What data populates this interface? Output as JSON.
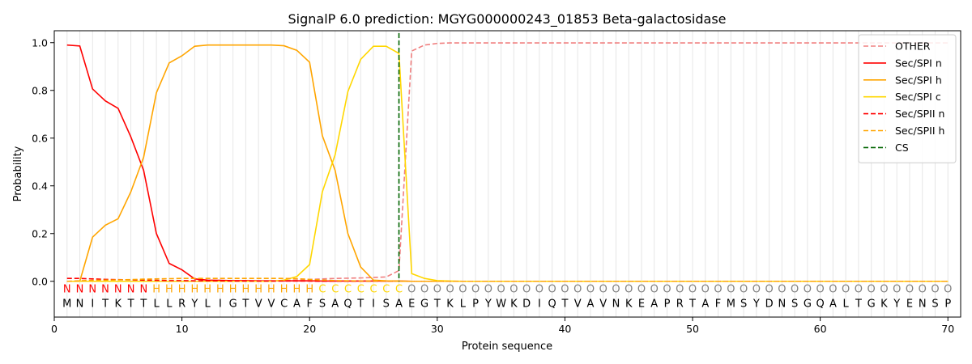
{
  "chart_data": {
    "type": "line",
    "title": "SignalP 6.0 prediction: MGYG000000243_01853 Beta-galactosidase",
    "xlabel": "Protein sequence",
    "ylabel": "Probability",
    "xlim": [
      0,
      71
    ],
    "ylim": [
      -0.15,
      1.05
    ],
    "xticks": [
      0,
      10,
      20,
      30,
      40,
      50,
      60,
      70
    ],
    "yticks": [
      0.0,
      0.2,
      0.4,
      0.6,
      0.8,
      1.0
    ],
    "ytick_labels": [
      "0.0",
      "0.2",
      "0.4",
      "0.6",
      "0.8",
      "1.0"
    ],
    "legend_position": "top-right",
    "sequence": "MNITKTTLLRYLIGTVVCAFSAQTISAEGTKLPYWKDIQTVAVNKEAPRTAFMSYDNSGQALTGKYENSP",
    "labels": "NNNNNNNHHHHHHHHHHHHHCCCCCCCOOOOOOOOOOOOOOOOOOOOOOOOOOOOOOOOOOOOOOOOOOO",
    "label_colors": {
      "N": "#ff0000",
      "H": "#ffa500",
      "C": "#ffd700",
      "O": "#808080"
    },
    "cleavage_site": 27,
    "series": [
      {
        "name": "OTHER",
        "color": "#f08080",
        "dash": "dashed",
        "values": [
          0.0,
          0.0,
          0.0,
          0.0,
          0.0,
          0.0,
          0.0,
          0.0,
          0.0,
          0.0,
          0.0,
          0.0,
          0.0,
          0.0,
          0.0,
          0.0,
          0.0,
          0.003,
          0.005,
          0.008,
          0.01,
          0.012,
          0.013,
          0.014,
          0.016,
          0.018,
          0.045,
          0.965,
          0.99,
          0.997,
          0.999,
          0.999
        ]
      },
      {
        "name": "Sec/SPI n",
        "color": "#ff0000",
        "dash": "solid",
        "values": [
          0.99,
          0.986,
          0.806,
          0.756,
          0.725,
          0.605,
          0.465,
          0.2,
          0.075,
          0.048,
          0.01,
          0.005,
          0.004,
          0.003,
          0.003,
          0.002,
          0.002,
          0.002,
          0.002,
          0.002,
          0.001,
          0.001,
          0.001,
          0.001,
          0.001,
          0.001,
          0.001,
          0.0
        ]
      },
      {
        "name": "Sec/SPI h",
        "color": "#ffa500",
        "dash": "solid",
        "values": [
          0.0,
          0.0,
          0.185,
          0.235,
          0.262,
          0.375,
          0.52,
          0.79,
          0.915,
          0.945,
          0.985,
          0.99,
          0.99,
          0.99,
          0.99,
          0.99,
          0.99,
          0.987,
          0.968,
          0.918,
          0.61,
          0.465,
          0.2,
          0.06,
          0.005,
          0.002,
          0.001,
          0.0
        ]
      },
      {
        "name": "Sec/SPI c",
        "color": "#ffd700",
        "dash": "solid",
        "values": [
          0.0,
          0.0,
          0.0,
          0.0,
          0.0,
          0.0,
          0.0,
          0.0,
          0.0,
          0.0,
          0.0,
          0.0,
          0.0,
          0.0,
          0.0,
          0.0,
          0.0,
          0.005,
          0.02,
          0.07,
          0.375,
          0.53,
          0.795,
          0.93,
          0.985,
          0.985,
          0.955,
          0.032,
          0.012,
          0.003,
          0.001,
          0.0
        ]
      },
      {
        "name": "Sec/SPII n",
        "color": "#ff0000",
        "dash": "dashed",
        "values": [
          0.012,
          0.012,
          0.01,
          0.008,
          0.007,
          0.006,
          0.005,
          0.004,
          0.003,
          0.003,
          0.002,
          0.002,
          0.002,
          0.001,
          0.001,
          0.001,
          0.001,
          0.001,
          0.001,
          0.001,
          0.0
        ]
      },
      {
        "name": "Sec/SPII h",
        "color": "#ffa500",
        "dash": "dashed",
        "values": [
          0.0,
          0.002,
          0.004,
          0.005,
          0.006,
          0.007,
          0.009,
          0.01,
          0.011,
          0.012,
          0.012,
          0.012,
          0.012,
          0.012,
          0.012,
          0.012,
          0.012,
          0.012,
          0.011,
          0.008,
          0.005,
          0.003,
          0.002,
          0.001,
          0.001,
          0.001,
          0.0
        ]
      },
      {
        "name": "CS",
        "color": "#006400",
        "dash": "dashed",
        "values": []
      }
    ]
  }
}
